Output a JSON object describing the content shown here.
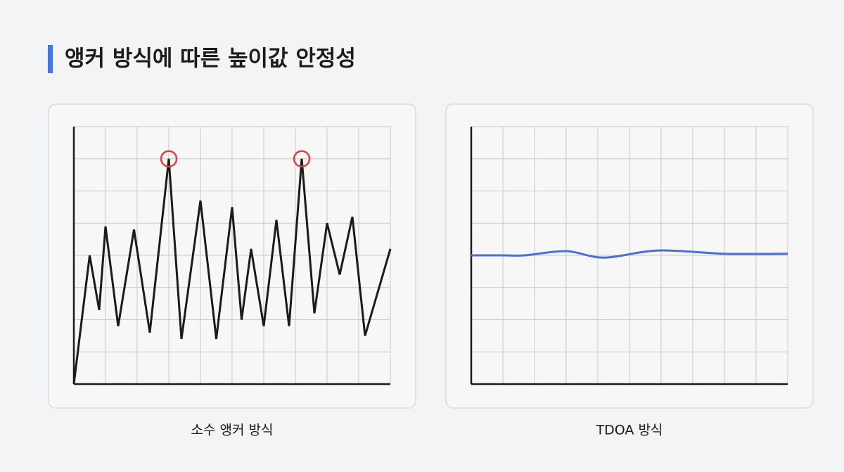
{
  "title": "앵커 방식에 따른 높이값 안정성",
  "chart_data": [
    {
      "type": "line",
      "caption": "소수 앵커 방식",
      "x": [
        0,
        0.5,
        0.8,
        1.0,
        1.4,
        1.9,
        2.4,
        3.0,
        3.4,
        4.0,
        4.5,
        5.0,
        5.3,
        5.6,
        6.0,
        6.4,
        6.8,
        7.2,
        7.6,
        8.0,
        8.4,
        8.8,
        9.2,
        10.0
      ],
      "series": [
        {
          "color": "#1b1b1b",
          "values": [
            0,
            4.0,
            2.3,
            4.9,
            1.8,
            4.8,
            1.6,
            7.0,
            1.4,
            5.7,
            1.4,
            5.5,
            2.0,
            4.2,
            1.8,
            5.1,
            1.8,
            7.0,
            2.2,
            5.0,
            3.4,
            5.2,
            1.5,
            4.2
          ]
        }
      ],
      "highlight_points": [
        7,
        17
      ],
      "highlight_color": "#d9443f",
      "smooth": false,
      "xlim": [
        0,
        10
      ],
      "ylim": [
        0,
        8
      ],
      "xticks": [
        0,
        1,
        2,
        3,
        4,
        5,
        6,
        7,
        8,
        9,
        10
      ],
      "yticks": [
        0,
        1,
        2,
        3,
        4,
        5,
        6,
        7,
        8
      ],
      "grid": true
    },
    {
      "type": "line",
      "caption": "TDOA 방식",
      "x": [
        0,
        1,
        1.7,
        3.0,
        4.2,
        5.9,
        8.0,
        10.0
      ],
      "series": [
        {
          "color": "#4a6fd8",
          "values": [
            4.0,
            4.0,
            4.0,
            4.13,
            3.93,
            4.15,
            4.05,
            4.05
          ]
        }
      ],
      "highlight_points": [],
      "highlight_color": "#d9443f",
      "smooth": true,
      "xlim": [
        0,
        10
      ],
      "ylim": [
        0,
        8
      ],
      "xticks": [
        0,
        1,
        2,
        3,
        4,
        5,
        6,
        7,
        8,
        9,
        10
      ],
      "yticks": [
        0,
        1,
        2,
        3,
        4,
        5,
        6,
        7,
        8
      ],
      "grid": true
    }
  ]
}
